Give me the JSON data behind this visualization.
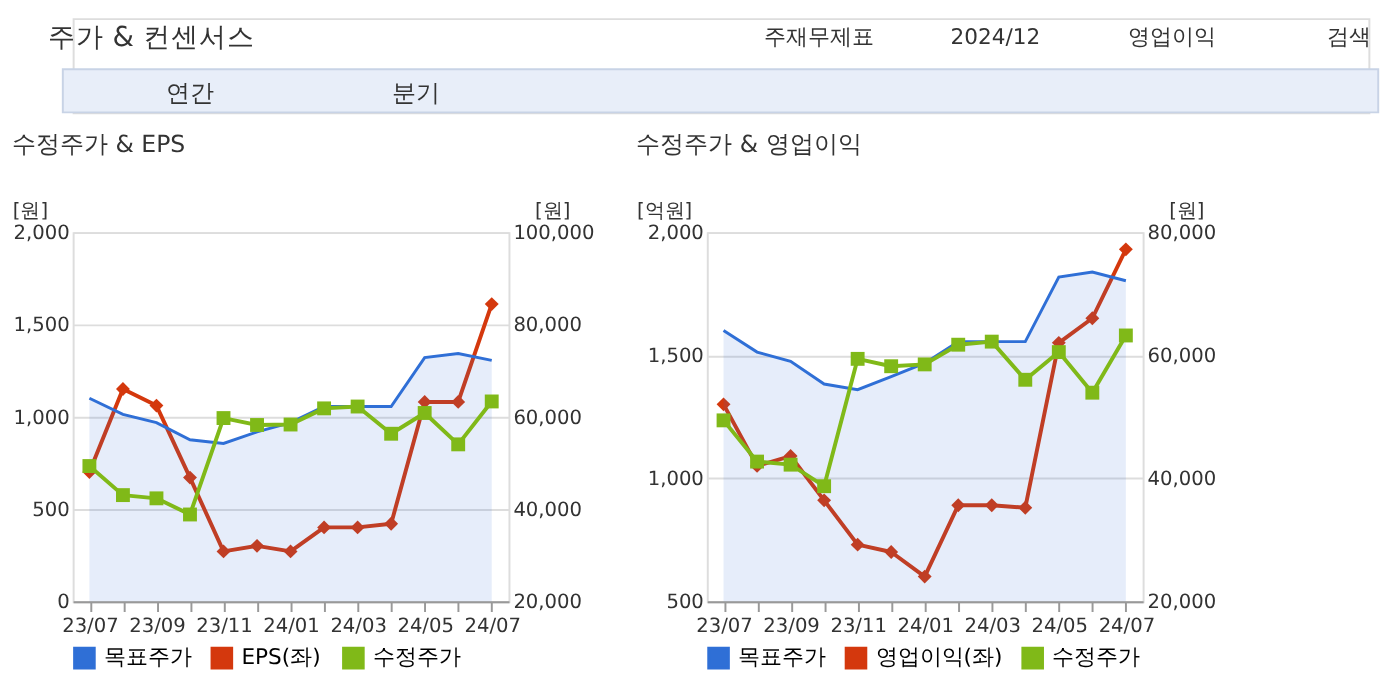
{
  "chart_data": [
    {
      "type": "line",
      "title": "수정주가 & EPS",
      "annotations": [
        "주가 & 컨센서스",
        "주재무제표",
        "2024/12",
        "영업이익",
        "검색",
        "연간",
        "분기"
      ],
      "categories": [
        "23/07",
        null,
        "23/09",
        null,
        "23/11",
        null,
        "24/01",
        null,
        "24/03",
        null,
        "24/05",
        null,
        "24/07"
      ],
      "ylabel": "[원]",
      "y2label": "[원]",
      "ylim": [
        0,
        2000
      ],
      "yticks": [
        0,
        500,
        {
          "value": 1000,
          "label": "1,000"
        },
        {
          "value": 1500,
          "label": "1,500"
        },
        {
          "value": 2000,
          "label": "2,000"
        }
      ],
      "y2lim": [
        20000,
        100000
      ],
      "y2ticks": [
        {
          "value": 20000,
          "label": "20,000"
        },
        {
          "value": 40000,
          "label": "40,000"
        },
        {
          "value": 60000,
          "label": "60,000"
        },
        {
          "value": 80000,
          "label": "80,000"
        },
        {
          "value": 100000,
          "label": "100,000"
        }
      ],
      "grid": "y",
      "legend": "bottom",
      "series": [
        {
          "name": "목표주가",
          "type": "area",
          "axis": "y2",
          "color": "#2f6fd6",
          "values": [
            64000,
            60500,
            58700,
            55000,
            54200,
            56700,
            58700,
            62200,
            62200,
            62200,
            72800,
            73700,
            72200
          ]
        },
        {
          "name": "EPS(좌)",
          "color": "#d4380d",
          "marker": "diamond",
          "values": [
            700,
            1150,
            1060,
            670,
            270,
            300,
            270,
            400,
            400,
            420,
            1080,
            1080,
            1610
          ]
        },
        {
          "name": "수정주가",
          "axis": "y2",
          "color": "#80b918",
          "marker": "square",
          "values": [
            49300,
            43000,
            42300,
            38800,
            59700,
            58200,
            58300,
            61800,
            62200,
            56300,
            60800,
            54000,
            63300
          ]
        }
      ]
    },
    {
      "type": "line",
      "title": "수정주가 & 영업이익",
      "categories": [
        "23/07",
        null,
        "23/09",
        null,
        "23/11",
        null,
        "24/01",
        null,
        "24/03",
        null,
        "24/05",
        null,
        "24/07"
      ],
      "ylabel": "[억원]",
      "y2label": "[원]",
      "ylim": [
        500,
        2000
      ],
      "yticks": [
        500,
        {
          "value": 1000,
          "label": "1,000"
        },
        {
          "value": 1500,
          "label": "1,500"
        },
        {
          "value": 2000,
          "label": "2,000"
        }
      ],
      "y2lim": [
        20000,
        80000
      ],
      "y2ticks": [
        {
          "value": 20000,
          "label": "20,000"
        },
        {
          "value": 40000,
          "label": "40,000"
        },
        {
          "value": 60000,
          "label": "60,000"
        },
        {
          "value": 80000,
          "label": "80,000"
        }
      ],
      "grid": "y",
      "legend": "bottom",
      "series": [
        {
          "name": "목표주가",
          "type": "area",
          "axis": "y2",
          "color": "#2f6fd6",
          "values": [
            64000,
            60500,
            59000,
            55300,
            54400,
            56500,
            58700,
            62200,
            62200,
            62200,
            72700,
            73500,
            72100
          ]
        },
        {
          "name": "영업이익(좌)",
          "color": "#d4380d",
          "marker": "diamond",
          "values": [
            1300,
            1050,
            1090,
            910,
            730,
            700,
            600,
            890,
            890,
            880,
            1550,
            1650,
            1930
          ]
        },
        {
          "name": "수정주가",
          "axis": "y2",
          "color": "#80b918",
          "marker": "square",
          "values": [
            49400,
            42700,
            42200,
            38700,
            59400,
            58200,
            58500,
            61700,
            62200,
            56000,
            60500,
            53900,
            63200
          ]
        }
      ]
    }
  ]
}
